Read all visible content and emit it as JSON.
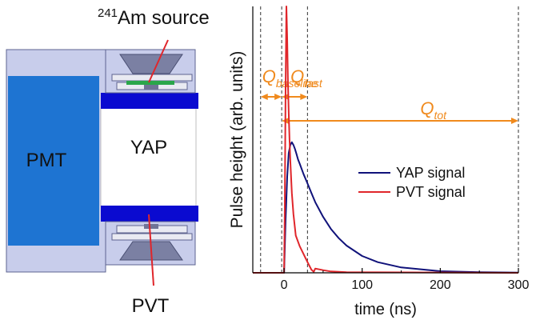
{
  "diagram": {
    "source_label_sup": "241",
    "source_label_main": "Am source",
    "pmt_label": "PMT",
    "yap_label": "YAP",
    "pvt_label": "PVT",
    "colors": {
      "pmt_blue": "#1e74d2",
      "yap_blue": "#0a0ad0",
      "housing": "#c8cdeb",
      "housing_dark": "#9aa1c9",
      "source_green": "#2aa64a",
      "pointer_red": "#e0262b"
    }
  },
  "chart_data": {
    "type": "line",
    "title": "",
    "xlabel": "time (ns)",
    "ylabel": "Pulse height (arb. units)",
    "xlim": [
      -40,
      300
    ],
    "ylim": [
      0,
      1.0
    ],
    "x_ticks": [
      0,
      100,
      200,
      300
    ],
    "y_ticks": [],
    "grid": false,
    "legend_position": "center-right",
    "series": [
      {
        "name": "YAP signal",
        "color": "#10127a",
        "x": [
          -40,
          0,
          2,
          4,
          6,
          8,
          10,
          12,
          14,
          16,
          18,
          20,
          25,
          30,
          35,
          40,
          50,
          60,
          70,
          80,
          100,
          120,
          150,
          200,
          250,
          300
        ],
        "y": [
          0,
          0,
          0.2,
          0.36,
          0.45,
          0.48,
          0.49,
          0.48,
          0.465,
          0.445,
          0.425,
          0.41,
          0.37,
          0.335,
          0.3,
          0.265,
          0.21,
          0.165,
          0.13,
          0.102,
          0.063,
          0.04,
          0.02,
          0.006,
          0.002,
          0.001
        ]
      },
      {
        "name": "PVT signal",
        "color": "#e0262b",
        "x": [
          -40,
          0,
          1,
          2,
          3,
          4,
          5,
          6,
          7,
          8,
          10,
          12,
          15,
          20,
          25,
          30,
          35,
          38,
          40,
          50,
          60,
          80,
          300
        ],
        "y": [
          0,
          0,
          0.25,
          0.7,
          1.0,
          0.88,
          0.72,
          0.6,
          0.5,
          0.42,
          0.3,
          0.22,
          0.14,
          0.1,
          0.07,
          0.04,
          0.012,
          0.004,
          0.016,
          0.01,
          0.005,
          0.002,
          0.0
        ]
      }
    ],
    "annotations": {
      "q_baseline": {
        "label_main": "Q",
        "label_sub": "baseline",
        "from": -30,
        "to": -3
      },
      "q_fast": {
        "label_main": "Q",
        "label_sub": "fast",
        "from": -3,
        "to": 30
      },
      "q_tot": {
        "label_main": "Q",
        "label_sub": "tot",
        "from": -3,
        "to": 300
      },
      "dashed_lines": [
        -30,
        -3,
        30,
        300
      ],
      "color": "#f08a1d"
    }
  }
}
